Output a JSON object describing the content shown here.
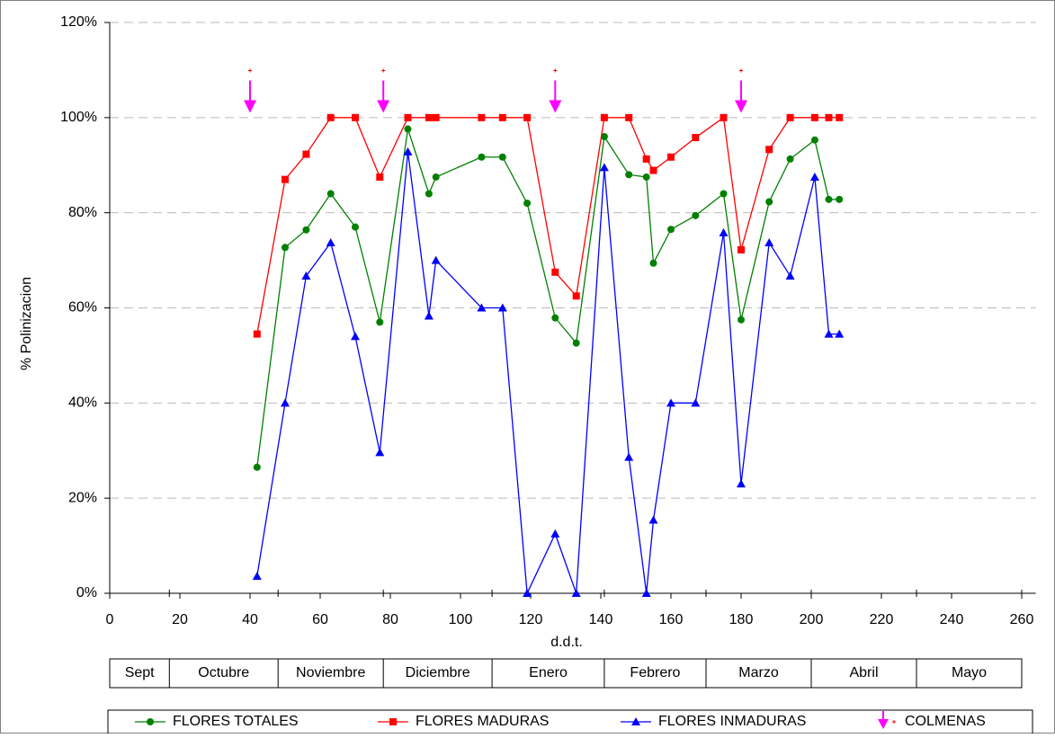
{
  "chart_data": {
    "type": "line",
    "y_label": "% Polinizacion",
    "x_label": "d.d.t.",
    "xlim": [
      0,
      264
    ],
    "xticks": [
      0,
      20,
      40,
      60,
      80,
      100,
      120,
      140,
      160,
      180,
      200,
      220,
      240,
      260
    ],
    "ylim": [
      0,
      120
    ],
    "yticks": [
      {
        "value": 0,
        "label": "0%"
      },
      {
        "value": 20,
        "label": "20%"
      },
      {
        "value": 40,
        "label": "40%"
      },
      {
        "value": 60,
        "label": "60%"
      },
      {
        "value": 80,
        "label": "80%"
      },
      {
        "value": 100,
        "label": "100%"
      },
      {
        "value": 120,
        "label": "120%"
      }
    ],
    "grid": true,
    "months": [
      "Sept",
      "Octubre",
      "Noviembre",
      "Diciembre",
      "Enero",
      "Febrero",
      "Marzo",
      "Abril",
      "Mayo"
    ],
    "month_edges": [
      0,
      17,
      48,
      78,
      109,
      141,
      170,
      200,
      230,
      260
    ],
    "x": [
      42,
      50,
      56,
      63,
      70,
      77,
      85,
      91,
      93,
      106,
      112,
      119,
      127,
      133,
      141,
      148,
      153,
      155,
      160,
      167,
      175,
      180,
      188,
      194,
      201,
      205,
      208
    ],
    "series": [
      {
        "name": "FLORES TOTALES",
        "color": "#008000",
        "marker": "circle",
        "values": [
          26.5,
          72.7,
          76.4,
          84,
          77,
          57,
          97.6,
          84,
          87.5,
          91.7,
          91.7,
          82,
          57.9,
          52.6,
          96,
          88,
          87.5,
          69.4,
          76.5,
          79.4,
          84,
          57.5,
          82.3,
          91.3,
          95.3,
          82.8,
          82.8
        ]
      },
      {
        "name": "FLORES MADURAS",
        "color": "#ff0000",
        "marker": "square",
        "values": [
          54.5,
          87,
          92.3,
          100,
          100,
          87.5,
          100,
          100,
          100,
          100,
          100,
          100,
          67.5,
          62.5,
          100,
          100,
          91.3,
          88.9,
          91.7,
          95.8,
          100,
          72.2,
          93.3,
          100,
          100,
          100,
          100
        ]
      },
      {
        "name": "FLORES INMADURAS",
        "color": "#0000ff",
        "marker": "triangle",
        "values": [
          3.6,
          40,
          66.7,
          73.7,
          54,
          29.6,
          92.8,
          58.3,
          70,
          60,
          60,
          0,
          12.5,
          0,
          89.5,
          28.6,
          0,
          15.4,
          40,
          40,
          75.8,
          23,
          73.7,
          66.7,
          87.5,
          54.5,
          54.5
        ]
      }
    ],
    "colmenas": {
      "name": "COLMENAS",
      "color": "#ff00ff",
      "x": [
        40,
        78,
        127,
        180
      ],
      "values": [
        101,
        101,
        101,
        101
      ]
    }
  }
}
